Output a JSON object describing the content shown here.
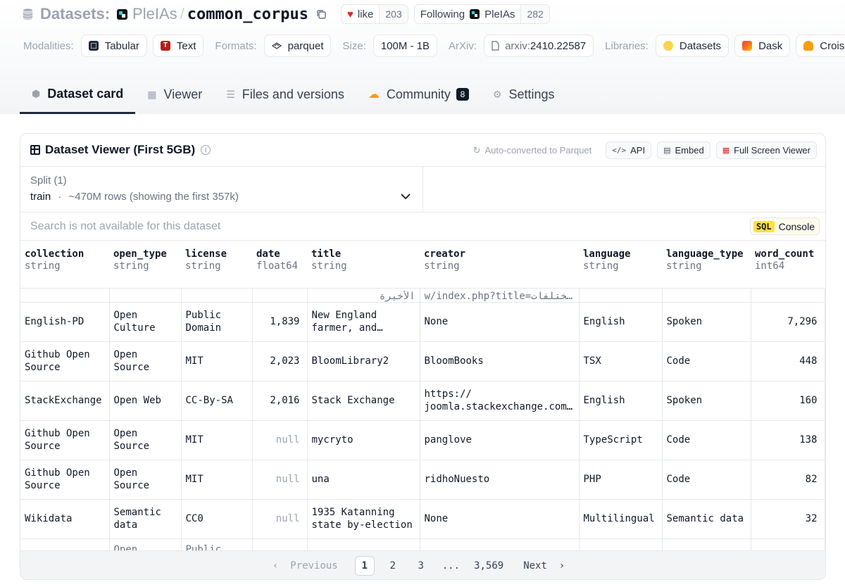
{
  "header": {
    "datasets_label": "Datasets:",
    "org": "PleIAs",
    "repo": "common_corpus",
    "like_label": "like",
    "like_count": "203",
    "following_label": "Following",
    "following_org": "PleIAs",
    "following_count": "282"
  },
  "meta": {
    "modalities_label": "Modalities:",
    "modalities": [
      "Tabular",
      "Text"
    ],
    "formats_label": "Formats:",
    "format": "parquet",
    "size_label": "Size:",
    "size": "100M - 1B",
    "arxiv_label": "ArXiv:",
    "arxiv_prefix": "arxiv:",
    "arxiv_id": "2410.22587",
    "libraries_label": "Libraries:",
    "libraries": [
      "Datasets",
      "Dask",
      "Croissant"
    ]
  },
  "tabs": [
    {
      "label": "Dataset card",
      "icon": "cube-icon",
      "active": true
    },
    {
      "label": "Viewer",
      "icon": "table-icon"
    },
    {
      "label": "Files and versions",
      "icon": "files-icon"
    },
    {
      "label": "Community",
      "icon": "community-icon",
      "badge": "8"
    },
    {
      "label": "Settings",
      "icon": "gear-icon"
    }
  ],
  "viewer": {
    "title": "Dataset Viewer (First 5GB)",
    "auto_converted": "Auto-converted to Parquet",
    "api_label": "API",
    "embed_label": "Embed",
    "fullscreen_label": "Full Screen Viewer",
    "split_title": "Split (1)",
    "split_name": "train",
    "split_dot": "·",
    "split_rows": "~470M rows (showing the first 357k)",
    "search_placeholder": "Search is not available for this dataset",
    "sql_tag": "SQL",
    "console_label": "Console"
  },
  "table": {
    "columns": [
      {
        "name": "collection",
        "type": "string"
      },
      {
        "name": "open_type",
        "type": "string"
      },
      {
        "name": "license",
        "type": "string"
      },
      {
        "name": "date",
        "type": "float64"
      },
      {
        "name": "title",
        "type": "string"
      },
      {
        "name": "creator",
        "type": "string"
      },
      {
        "name": "language",
        "type": "string"
      },
      {
        "name": "language_type",
        "type": "string"
      },
      {
        "name": "word_count",
        "type": "int64"
      }
    ],
    "partial_top": {
      "title": "الأخيرة",
      "creator": "w/index.php?title=مختلفات…"
    },
    "rows": [
      {
        "collection": "English-PD",
        "open_type": "Open Culture",
        "license": "Public Domain",
        "date": "1,839",
        "title": "New England farmer, and…",
        "creator": "None",
        "language": "English",
        "language_type": "Spoken",
        "word_count": "7,296"
      },
      {
        "collection": "Github Open Source",
        "open_type": "Open Source",
        "license": "MIT",
        "date": "2,023",
        "title": "BloomLibrary2",
        "creator": "BloomBooks",
        "language": "TSX",
        "language_type": "Code",
        "word_count": "448"
      },
      {
        "collection": "StackExchange",
        "open_type": "Open Web",
        "license": "CC-By-SA",
        "date": "2,016",
        "title": "Stack Exchange",
        "creator": "https:// joomla.stackexchange.com…",
        "language": "English",
        "language_type": "Spoken",
        "word_count": "160"
      },
      {
        "collection": "Github Open Source",
        "open_type": "Open Source",
        "license": "MIT",
        "date": "null",
        "title": "mycryto",
        "creator": "panglove",
        "language": "TypeScript",
        "language_type": "Code",
        "word_count": "138"
      },
      {
        "collection": "Github Open Source",
        "open_type": "Open Source",
        "license": "MIT",
        "date": "null",
        "title": "una",
        "creator": "ridhoNuesto",
        "language": "PHP",
        "language_type": "Code",
        "word_count": "82"
      },
      {
        "collection": "Wikidata",
        "open_type": "Semantic data",
        "license": "CC0",
        "date": "null",
        "title": "1935 Katanning state by-election",
        "creator": "None",
        "language": "Multilingual",
        "language_type": "Semantic data",
        "word_count": "32"
      }
    ],
    "partial_bottom": {
      "open_type": "Open",
      "license": "Public"
    }
  },
  "pagination": {
    "previous": "Previous",
    "pages": [
      "1",
      "2",
      "3",
      "...",
      "3,569"
    ],
    "current": "1",
    "next": "Next"
  },
  "colors": {
    "accent_dark": "#111827",
    "like_heart": "#dc2626",
    "sql_badge": "#fde047",
    "null_text": "#9ca3af"
  }
}
